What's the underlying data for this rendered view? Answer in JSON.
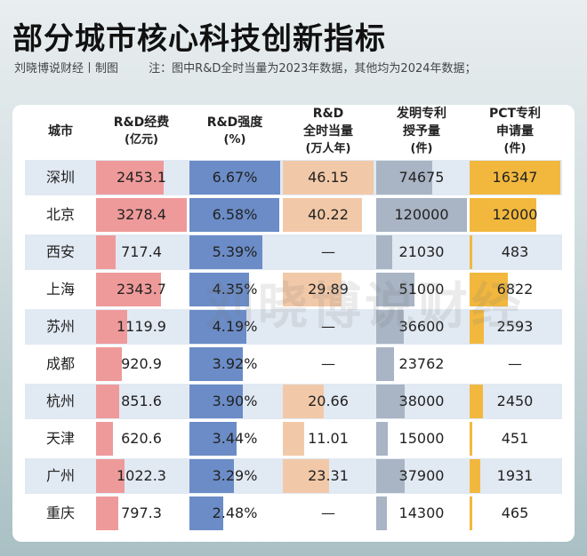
{
  "title": "部分城市核心科技创新指标",
  "credit": "刘晓博说财经丨制图",
  "note": "注：图中R&D全时当量为2023年数据，其他均为2024年数据；",
  "watermark": "刘晓博说财经",
  "chart_data": {
    "type": "table",
    "columns": [
      {
        "key": "city",
        "lines": [
          "城市"
        ]
      },
      {
        "key": "rd_cost",
        "lines": [
          "R&D经费",
          "(亿元)"
        ],
        "color": "#ef9a9a"
      },
      {
        "key": "rd_intensity",
        "lines": [
          "R&D强度",
          "(%)"
        ],
        "color": "#6b8cc7"
      },
      {
        "key": "rd_fte",
        "lines": [
          "R&D",
          "全时当量",
          "(万人年)"
        ],
        "color": "#f2c9a8"
      },
      {
        "key": "invention",
        "lines": [
          "发明专利",
          "授予量",
          "(件)"
        ],
        "color": "#a9b4c4"
      },
      {
        "key": "pct",
        "lines": [
          "PCT专利",
          "申请量",
          "(件)"
        ],
        "color": "#f2b83e"
      }
    ],
    "rows": [
      {
        "city": "深圳",
        "rd_cost": "2453.1",
        "rd_intensity": "6.67%",
        "rd_fte": "46.15",
        "invention": "74675",
        "pct": "16347"
      },
      {
        "city": "北京",
        "rd_cost": "3278.4",
        "rd_intensity": "6.58%",
        "rd_fte": "40.22",
        "invention": "120000",
        "pct": "12000"
      },
      {
        "city": "西安",
        "rd_cost": "717.4",
        "rd_intensity": "5.39%",
        "rd_fte": "—",
        "invention": "21030",
        "pct": "483"
      },
      {
        "city": "上海",
        "rd_cost": "2343.7",
        "rd_intensity": "4.35%",
        "rd_fte": "29.89",
        "invention": "51000",
        "pct": "6822"
      },
      {
        "city": "苏州",
        "rd_cost": "1119.9",
        "rd_intensity": "4.19%",
        "rd_fte": "—",
        "invention": "36600",
        "pct": "2593"
      },
      {
        "city": "成都",
        "rd_cost": "920.9",
        "rd_intensity": "3.92%",
        "rd_fte": "—",
        "invention": "23762",
        "pct": "—"
      },
      {
        "city": "杭州",
        "rd_cost": "851.6",
        "rd_intensity": "3.90%",
        "rd_fte": "20.66",
        "invention": "38000",
        "pct": "2450"
      },
      {
        "city": "天津",
        "rd_cost": "620.6",
        "rd_intensity": "3.44%",
        "rd_fte": "11.01",
        "invention": "15000",
        "pct": "451"
      },
      {
        "city": "广州",
        "rd_cost": "1022.3",
        "rd_intensity": "3.29%",
        "rd_fte": "23.31",
        "invention": "37900",
        "pct": "1931"
      },
      {
        "city": "重庆",
        "rd_cost": "797.3",
        "rd_intensity": "2.48%",
        "rd_fte": "—",
        "invention": "14300",
        "pct": "465"
      }
    ]
  }
}
